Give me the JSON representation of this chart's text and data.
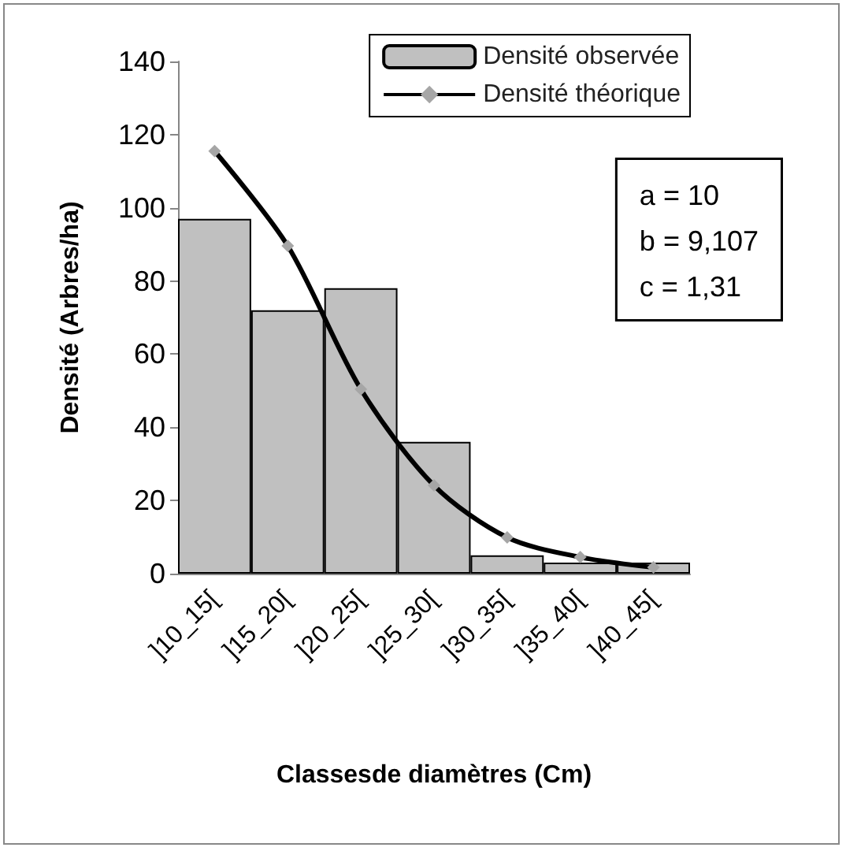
{
  "chart_data": {
    "type": "bar",
    "xlabel": "Classesde diamètres (Cm)",
    "ylabel": "Densité (Arbres/ha)",
    "categories": [
      "]10_15[",
      "]15_20[",
      "]20_25[",
      "]25_30[",
      "]30_35[",
      "]35_40[",
      "]40_45["
    ],
    "series": [
      {
        "name": "Densité observée",
        "color": "#c0c0c0",
        "values": [
          97,
          72,
          78,
          36,
          5,
          3,
          3
        ]
      },
      {
        "name": "Densité théorique",
        "type": "line",
        "color": "#000000",
        "marker": "diamond",
        "values": [
          115.5,
          89.6,
          50.4,
          24.1,
          9.9,
          4.5,
          1.7
        ]
      }
    ],
    "ylim": [
      0,
      140
    ],
    "yticks": [
      0,
      20,
      40,
      60,
      80,
      100,
      120,
      140
    ],
    "grid": false,
    "legend": "top right",
    "annotations": [
      "a = 10",
      "b = 9,107",
      "c = 1,31"
    ]
  }
}
